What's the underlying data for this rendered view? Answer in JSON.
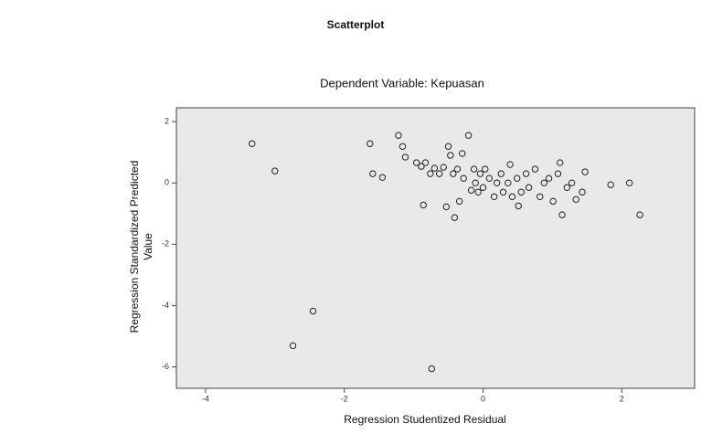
{
  "chart_data": {
    "type": "scatter",
    "title": "Scatterplot",
    "subtitle": "Dependent Variable: Kepuasan",
    "xlabel": "Regression Studentized Residual",
    "ylabel": [
      "Regression Standardized Predicted",
      "Value"
    ],
    "xlim": [
      -4.42,
      3.05
    ],
    "ylim": [
      -6.7,
      2.45
    ],
    "xticks": [
      -4,
      -2,
      0,
      2
    ],
    "yticks": [
      2,
      0,
      -2,
      -4,
      -6
    ],
    "color": "#222222",
    "x": [
      -3.33,
      -3.0,
      -1.63,
      -1.59,
      -1.45,
      -1.22,
      -1.16,
      -1.12,
      -0.96,
      -0.89,
      -0.86,
      -0.83,
      -0.76,
      -0.7,
      -0.63,
      -0.57,
      -0.53,
      -0.5,
      -0.47,
      -0.43,
      -0.41,
      -0.37,
      -0.34,
      -0.3,
      -0.28,
      -0.21,
      -0.17,
      -0.13,
      -0.11,
      -0.07,
      -0.04,
      0,
      0.03,
      0.09,
      0.16,
      0.2,
      0.26,
      0.29,
      0.36,
      0.39,
      0.42,
      0.49,
      0.51,
      0.55,
      0.62,
      0.66,
      0.75,
      0.82,
      0.88,
      0.95,
      1.01,
      1.08,
      1.11,
      1.14,
      1.21,
      1.28,
      1.34,
      1.43,
      1.47,
      1.84,
      2.11,
      2.26,
      -2.45,
      -2.74,
      -0.74
    ],
    "y": [
      1.28,
      0.39,
      1.28,
      0.3,
      0.18,
      1.55,
      1.19,
      0.84,
      0.66,
      0.54,
      -0.72,
      0.66,
      0.3,
      0.48,
      0.3,
      0.51,
      -0.78,
      1.19,
      0.9,
      0.3,
      -1.13,
      0.45,
      -0.6,
      0.96,
      0.15,
      1.55,
      -0.24,
      0.45,
      0,
      -0.3,
      0.3,
      -0.15,
      0.45,
      0.15,
      -0.45,
      0,
      0.3,
      -0.3,
      0,
      0.6,
      -0.45,
      0.15,
      -0.75,
      -0.3,
      0.3,
      -0.15,
      0.45,
      -0.45,
      0,
      0.15,
      -0.6,
      0.3,
      0.66,
      -1.04,
      -0.15,
      0,
      -0.54,
      -0.3,
      0.36,
      -0.06,
      0,
      -1.04,
      -4.18,
      -5.31,
      -6.06
    ]
  }
}
